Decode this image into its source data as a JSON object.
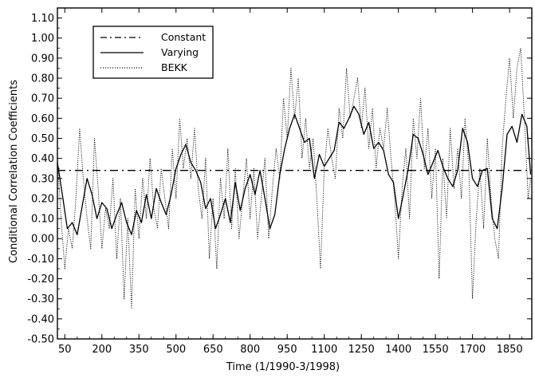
{
  "chart_data": {
    "type": "line",
    "title": "",
    "xlabel": "Time (1/1990-3/1998)",
    "ylabel": "Conditional Correlation Coefficients",
    "xlim": [
      20,
      1940
    ],
    "ylim": [
      -0.5,
      1.15
    ],
    "x_ticks": [
      50,
      200,
      350,
      500,
      650,
      800,
      950,
      1100,
      1250,
      1400,
      1550,
      1700,
      1850
    ],
    "y_ticks": [
      -0.5,
      -0.4,
      -0.3,
      -0.2,
      -0.1,
      0.0,
      0.1,
      0.2,
      0.3,
      0.4,
      0.5,
      0.6,
      0.7,
      0.8,
      0.9,
      1.0,
      1.1
    ],
    "x_tick_labels": [
      "50",
      "200",
      "350",
      "500",
      "650",
      "800",
      "950",
      "1100",
      "1250",
      "1400",
      "1550",
      "1700",
      "1850"
    ],
    "y_tick_labels": [
      "-0.50",
      "-0.40",
      "-0.30",
      "-0.20",
      "-0.10",
      "0.00",
      "0.10",
      "0.20",
      "0.30",
      "0.40",
      "0.50",
      "0.60",
      "0.70",
      "0.80",
      "0.90",
      "1.00",
      "1.10"
    ],
    "legend": {
      "placement": "top-left",
      "entries": [
        {
          "label": "Constant",
          "style": "dashdot"
        },
        {
          "label": "Varying",
          "style": "solid"
        },
        {
          "label": "BEKK",
          "style": "dotted"
        }
      ]
    },
    "grid": false,
    "series": [
      {
        "name": "Constant",
        "style": "dashdot",
        "x": [
          20,
          1940
        ],
        "y": [
          0.34,
          0.34
        ]
      },
      {
        "name": "Varying",
        "style": "solid",
        "x": [
          20,
          40,
          60,
          80,
          100,
          120,
          140,
          160,
          180,
          200,
          220,
          240,
          260,
          280,
          300,
          320,
          340,
          360,
          380,
          400,
          420,
          440,
          460,
          480,
          500,
          520,
          540,
          560,
          580,
          600,
          620,
          640,
          660,
          680,
          700,
          720,
          740,
          760,
          780,
          800,
          820,
          840,
          860,
          880,
          900,
          920,
          940,
          960,
          980,
          1000,
          1020,
          1040,
          1060,
          1080,
          1100,
          1120,
          1140,
          1160,
          1180,
          1200,
          1220,
          1240,
          1260,
          1280,
          1300,
          1320,
          1340,
          1360,
          1380,
          1400,
          1420,
          1440,
          1460,
          1480,
          1500,
          1520,
          1540,
          1560,
          1580,
          1600,
          1620,
          1640,
          1660,
          1680,
          1700,
          1720,
          1740,
          1760,
          1780,
          1800,
          1820,
          1840,
          1860,
          1880,
          1900,
          1920,
          1935
        ],
        "y": [
          0.38,
          0.22,
          0.05,
          0.08,
          0.02,
          0.16,
          0.3,
          0.22,
          0.1,
          0.18,
          0.15,
          0.05,
          0.12,
          0.18,
          0.08,
          0.02,
          0.14,
          0.08,
          0.22,
          0.1,
          0.25,
          0.18,
          0.12,
          0.22,
          0.35,
          0.42,
          0.47,
          0.38,
          0.34,
          0.28,
          0.15,
          0.2,
          0.05,
          0.12,
          0.2,
          0.08,
          0.28,
          0.14,
          0.25,
          0.32,
          0.22,
          0.34,
          0.2,
          0.05,
          0.12,
          0.32,
          0.45,
          0.55,
          0.62,
          0.55,
          0.48,
          0.5,
          0.3,
          0.42,
          0.36,
          0.4,
          0.44,
          0.58,
          0.55,
          0.6,
          0.66,
          0.62,
          0.52,
          0.58,
          0.45,
          0.48,
          0.44,
          0.32,
          0.28,
          0.1,
          0.22,
          0.35,
          0.52,
          0.5,
          0.42,
          0.32,
          0.38,
          0.44,
          0.36,
          0.3,
          0.26,
          0.34,
          0.55,
          0.48,
          0.3,
          0.26,
          0.34,
          0.35,
          0.1,
          0.05,
          0.25,
          0.52,
          0.56,
          0.48,
          0.62,
          0.56,
          0.32
        ]
      },
      {
        "name": "BEKK",
        "style": "dotted",
        "x": [
          20,
          35,
          50,
          65,
          80,
          95,
          110,
          125,
          140,
          155,
          170,
          185,
          200,
          215,
          230,
          245,
          260,
          275,
          290,
          305,
          320,
          335,
          350,
          365,
          380,
          395,
          410,
          425,
          440,
          455,
          470,
          485,
          500,
          515,
          530,
          545,
          560,
          575,
          590,
          605,
          620,
          635,
          650,
          665,
          680,
          695,
          710,
          725,
          740,
          755,
          770,
          785,
          800,
          815,
          830,
          845,
          860,
          875,
          890,
          905,
          920,
          935,
          950,
          965,
          980,
          995,
          1010,
          1025,
          1040,
          1055,
          1070,
          1085,
          1100,
          1115,
          1130,
          1145,
          1160,
          1175,
          1190,
          1205,
          1220,
          1235,
          1250,
          1265,
          1280,
          1295,
          1310,
          1325,
          1340,
          1355,
          1370,
          1385,
          1400,
          1415,
          1430,
          1445,
          1460,
          1475,
          1490,
          1505,
          1520,
          1535,
          1550,
          1565,
          1580,
          1595,
          1610,
          1625,
          1640,
          1655,
          1670,
          1685,
          1700,
          1715,
          1730,
          1745,
          1760,
          1775,
          1790,
          1805,
          1820,
          1835,
          1850,
          1865,
          1880,
          1895,
          1910,
          1925,
          1935
        ],
        "y": [
          0.4,
          0.1,
          -0.15,
          0.05,
          -0.05,
          0.2,
          0.55,
          0.3,
          0.1,
          -0.05,
          0.5,
          0.25,
          -0.05,
          0.15,
          0.05,
          0.3,
          -0.1,
          0.2,
          -0.3,
          0.1,
          -0.35,
          0.25,
          0.0,
          0.3,
          0.1,
          0.4,
          0.15,
          0.05,
          0.35,
          0.2,
          0.05,
          0.45,
          0.2,
          0.6,
          0.35,
          0.5,
          0.3,
          0.55,
          0.25,
          0.1,
          0.4,
          -0.1,
          0.2,
          -0.15,
          0.3,
          0.1,
          0.45,
          0.05,
          0.35,
          0.0,
          0.2,
          0.4,
          0.1,
          0.35,
          0.0,
          0.2,
          0.4,
          0.0,
          0.25,
          0.45,
          0.3,
          0.7,
          0.5,
          0.85,
          0.6,
          0.8,
          0.4,
          0.6,
          0.35,
          0.5,
          0.2,
          -0.15,
          0.35,
          0.55,
          0.4,
          0.3,
          0.65,
          0.5,
          0.85,
          0.6,
          0.7,
          0.8,
          0.55,
          0.75,
          0.45,
          0.65,
          0.35,
          0.55,
          0.45,
          0.65,
          0.4,
          0.2,
          -0.1,
          0.25,
          0.45,
          0.1,
          0.6,
          0.4,
          0.7,
          0.35,
          0.55,
          0.2,
          0.45,
          -0.2,
          0.4,
          0.1,
          0.55,
          0.25,
          0.45,
          0.2,
          0.6,
          0.35,
          -0.3,
          0.1,
          0.35,
          0.05,
          0.5,
          0.2,
          0.0,
          -0.1,
          0.45,
          0.7,
          0.9,
          0.6,
          0.85,
          0.95,
          0.6,
          0.2,
          0.3
        ]
      }
    ]
  }
}
